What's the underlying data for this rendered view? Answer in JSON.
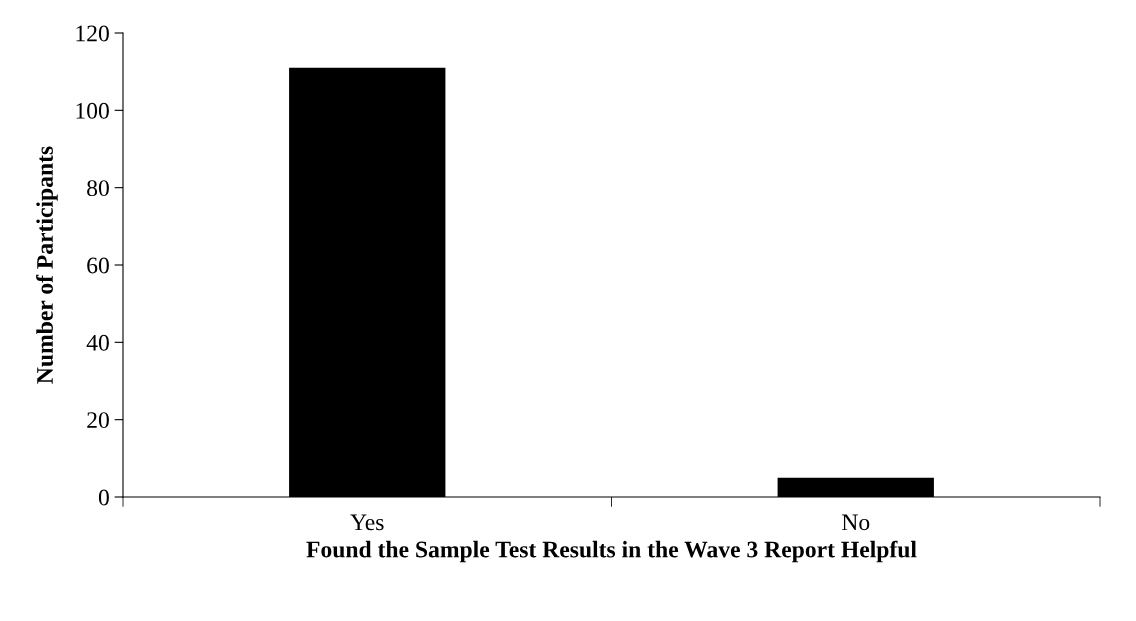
{
  "chart_data": {
    "type": "bar",
    "xlabel": "Found the Sample Test Results in the Wave 3 Report Helpful",
    "ylabel": "Number of Participants",
    "categories": [
      "Yes",
      "No"
    ],
    "values": [
      111,
      5
    ],
    "color": "#000000",
    "ylim": [
      0,
      120
    ],
    "yticks": [
      0,
      20,
      40,
      60,
      80,
      100,
      120
    ],
    "grid": false
  }
}
